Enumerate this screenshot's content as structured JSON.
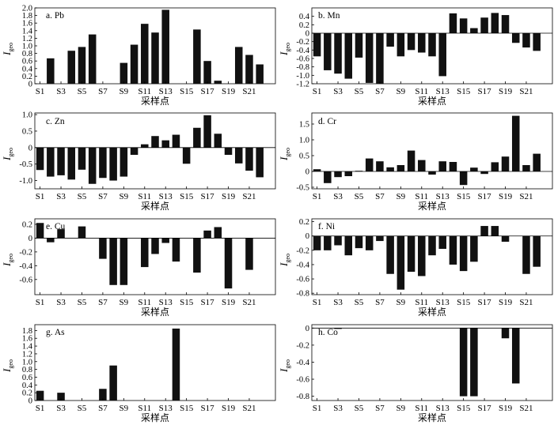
{
  "figure": {
    "categories": [
      "S1",
      "S2",
      "S3",
      "S4",
      "S5",
      "S6",
      "S7",
      "S8",
      "S9",
      "S10",
      "S11",
      "S12",
      "S13",
      "S14",
      "S15",
      "S16",
      "S17",
      "S18",
      "S19",
      "S20",
      "S21",
      "S22",
      "S23"
    ],
    "tick_labels": [
      "S1",
      "S3",
      "S5",
      "S7",
      "S9",
      "S11",
      "S13",
      "S15",
      "S17",
      "S19",
      "S21"
    ],
    "xlabel": "采样点",
    "ylabel_main": "I",
    "ylabel_sub": "geo",
    "bar_color": "#111111"
  },
  "chart_data": [
    {
      "type": "bar",
      "title": "a. Pb",
      "categories": [
        "S1",
        "S2",
        "S3",
        "S4",
        "S5",
        "S6",
        "S7",
        "S8",
        "S9",
        "S10",
        "S11",
        "S12",
        "S13",
        "S14",
        "S15",
        "S16",
        "S17",
        "S18",
        "S19",
        "S20",
        "S21",
        "S22",
        "S23"
      ],
      "values": [
        0,
        0.67,
        0,
        0.87,
        0.97,
        1.3,
        0,
        0,
        0.55,
        1.03,
        1.58,
        1.35,
        1.95,
        0,
        0,
        1.43,
        0.6,
        0.08,
        0,
        0.97,
        0.76,
        0.51,
        0
      ],
      "ylim": [
        0,
        2.0
      ],
      "yticks": [
        0,
        0.2,
        0.4,
        0.6,
        0.8,
        1.0,
        1.2,
        1.4,
        1.6,
        1.8,
        2.0
      ],
      "ytick_labels": [
        "0",
        "0.2",
        "0.4",
        "0.6",
        "0.8",
        "1.0",
        "1.2",
        "1.4",
        "1.6",
        "1.8",
        "2.0"
      ],
      "xlabel": "采样点"
    },
    {
      "type": "bar",
      "title": "b. Mn",
      "categories": [
        "S1",
        "S2",
        "S3",
        "S4",
        "S5",
        "S6",
        "S7",
        "S8",
        "S9",
        "S10",
        "S11",
        "S12",
        "S13",
        "S14",
        "S15",
        "S16",
        "S17",
        "S18",
        "S19",
        "S20",
        "S21",
        "S22",
        "S23"
      ],
      "values": [
        -0.55,
        -0.88,
        -0.96,
        -1.08,
        -0.58,
        -1.18,
        -1.2,
        -0.32,
        -0.55,
        -0.4,
        -0.46,
        -0.55,
        -1.02,
        0.47,
        0.35,
        0.12,
        0.37,
        0.48,
        0.43,
        -0.23,
        -0.34,
        -0.42,
        0
      ],
      "ylim": [
        -1.2,
        0.6
      ],
      "yticks": [
        -1.2,
        -1.0,
        -0.8,
        -0.6,
        -0.4,
        -0.2,
        0,
        0.2,
        0.4
      ],
      "ytick_labels": [
        "-1.2",
        "-1.0",
        "-0.8",
        "-0.6",
        "-0.4",
        "-0.2",
        "0",
        "0.2",
        "0.4"
      ],
      "xlabel": "采样点"
    },
    {
      "type": "bar",
      "title": "c. Zn",
      "categories": [
        "S1",
        "S2",
        "S3",
        "S4",
        "S5",
        "S6",
        "S7",
        "S8",
        "S9",
        "S10",
        "S11",
        "S12",
        "S13",
        "S14",
        "S15",
        "S16",
        "S17",
        "S18",
        "S19",
        "S20",
        "S21",
        "S22",
        "S23"
      ],
      "values": [
        -0.68,
        -0.88,
        -0.84,
        -0.97,
        -0.67,
        -1.1,
        -0.92,
        -1.0,
        -0.88,
        -0.22,
        0.1,
        0.35,
        0.22,
        0.39,
        -0.49,
        0.6,
        0.98,
        0.42,
        -0.22,
        -0.48,
        -0.7,
        -0.9,
        0
      ],
      "ylim": [
        -1.25,
        1.05
      ],
      "yticks": [
        -1.0,
        -0.5,
        0,
        0.5,
        1.0
      ],
      "ytick_labels": [
        "-1.0",
        "-0.5",
        "0",
        "0.5",
        "1.0"
      ],
      "xlabel": "采样点"
    },
    {
      "type": "bar",
      "title": "d. Cr",
      "categories": [
        "S1",
        "S2",
        "S3",
        "S4",
        "S5",
        "S6",
        "S7",
        "S8",
        "S9",
        "S10",
        "S11",
        "S12",
        "S13",
        "S14",
        "S15",
        "S16",
        "S17",
        "S18",
        "S19",
        "S20",
        "S21",
        "S22",
        "S23"
      ],
      "values": [
        0.07,
        -0.37,
        -0.18,
        -0.15,
        0.02,
        0.41,
        0.32,
        0.13,
        0.2,
        0.66,
        0.36,
        -0.1,
        0.32,
        0.3,
        -0.43,
        0.12,
        -0.08,
        0.29,
        0.47,
        1.76,
        0.2,
        0.56,
        0
      ],
      "ylim": [
        -0.55,
        1.85
      ],
      "yticks": [
        -0.5,
        0,
        0.5,
        1.0,
        1.5
      ],
      "ytick_labels": [
        "-0.5",
        "0",
        "0.5",
        "1.0",
        "1.5"
      ],
      "xlabel": "采样点"
    },
    {
      "type": "bar",
      "title": "e. Cu",
      "categories": [
        "S1",
        "S2",
        "S3",
        "S4",
        "S5",
        "S6",
        "S7",
        "S8",
        "S9",
        "S10",
        "S11",
        "S12",
        "S13",
        "S14",
        "S15",
        "S16",
        "S17",
        "S18",
        "S19",
        "S20",
        "S21",
        "S22",
        "S23"
      ],
      "values": [
        0.22,
        -0.06,
        0.13,
        0,
        0.17,
        0,
        -0.3,
        -0.68,
        -0.68,
        0,
        -0.42,
        -0.23,
        -0.07,
        -0.34,
        0,
        -0.5,
        0.11,
        0.16,
        -0.73,
        0,
        -0.46,
        0,
        0
      ],
      "ylim": [
        -0.82,
        0.28
      ],
      "yticks": [
        -0.6,
        -0.4,
        -0.2,
        0,
        0.2
      ],
      "ytick_labels": [
        "-0.6",
        "-0.4",
        "-0.2",
        "0",
        "0.2"
      ],
      "xlabel": "采样点"
    },
    {
      "type": "bar",
      "title": "f. Ni",
      "categories": [
        "S1",
        "S2",
        "S3",
        "S4",
        "S5",
        "S6",
        "S7",
        "S8",
        "S9",
        "S10",
        "S11",
        "S12",
        "S13",
        "S14",
        "S15",
        "S16",
        "S17",
        "S18",
        "S19",
        "S20",
        "S21",
        "S22",
        "S23"
      ],
      "values": [
        -0.2,
        -0.2,
        -0.13,
        -0.27,
        -0.17,
        -0.2,
        -0.07,
        -0.53,
        -0.75,
        -0.5,
        -0.56,
        -0.27,
        -0.18,
        -0.4,
        -0.49,
        -0.36,
        0.14,
        0.14,
        -0.08,
        0,
        -0.53,
        -0.43,
        0
      ],
      "ylim": [
        -0.82,
        0.24
      ],
      "yticks": [
        -0.8,
        -0.6,
        -0.4,
        -0.2,
        0,
        0.2
      ],
      "ytick_labels": [
        "-0.8",
        "-0.6",
        "-0.4",
        "-0.2",
        "0",
        "0.2"
      ],
      "xlabel": "采样点"
    },
    {
      "type": "bar",
      "title": "g. As",
      "categories": [
        "S1",
        "S2",
        "S3",
        "S4",
        "S5",
        "S6",
        "S7",
        "S8",
        "S9",
        "S10",
        "S11",
        "S12",
        "S13",
        "S14",
        "S15",
        "S16",
        "S17",
        "S18",
        "S19",
        "S20",
        "S21",
        "S22",
        "S23"
      ],
      "values": [
        0.25,
        0,
        0.2,
        0,
        0,
        0,
        0.3,
        0.9,
        0,
        0,
        0,
        0,
        0,
        1.85,
        0,
        0,
        0,
        0,
        0,
        0,
        0,
        0,
        0
      ],
      "ylim": [
        0,
        1.95
      ],
      "yticks": [
        0,
        0.2,
        0.4,
        0.6,
        0.8,
        1.0,
        1.2,
        1.4,
        1.6,
        1.8
      ],
      "ytick_labels": [
        "0",
        "0.2",
        "0.4",
        "0.6",
        "0.8",
        "1.0",
        "1.2",
        "1.4",
        "1.6",
        "1.8"
      ],
      "xlabel": "采样点"
    },
    {
      "type": "bar",
      "title": "h. Co",
      "categories": [
        "S1",
        "S2",
        "S3",
        "S4",
        "S5",
        "S6",
        "S7",
        "S8",
        "S9",
        "S10",
        "S11",
        "S12",
        "S13",
        "S14",
        "S15",
        "S16",
        "S17",
        "S18",
        "S19",
        "S20",
        "S21",
        "S22",
        "S23"
      ],
      "values": [
        0,
        0,
        -0.01,
        0,
        0,
        0,
        0,
        0,
        0,
        0,
        0,
        0,
        0,
        0,
        -0.8,
        -0.8,
        0,
        0,
        -0.12,
        -0.65,
        0,
        0,
        0
      ],
      "ylim": [
        -0.85,
        0.04
      ],
      "yticks": [
        -0.8,
        -0.6,
        -0.4,
        -0.2,
        0
      ],
      "ytick_labels": [
        "-0.8",
        "-0.6",
        "-0.4",
        "-0.2",
        "0"
      ],
      "xlabel": "采样点"
    }
  ]
}
